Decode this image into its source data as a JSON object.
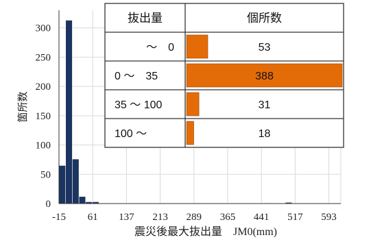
{
  "chart_data": {
    "type": "bar",
    "ylabel": "箇所数",
    "xlabel": "震災後最大抜出量　JM0(mm)",
    "ylim": [
      0,
      330
    ],
    "yticks": [
      0,
      50,
      100,
      150,
      200,
      250,
      300
    ],
    "xlim": [
      -15,
      620
    ],
    "xticks": [
      -15,
      61,
      137,
      213,
      289,
      365,
      441,
      517,
      593
    ],
    "grid": true,
    "bar_color": "#1b3460",
    "histogram": {
      "bin_starts": [
        -15,
        0,
        15,
        30,
        45,
        60,
        75,
        90,
        105,
        120,
        135,
        150,
        165,
        180,
        195,
        210,
        225,
        240,
        255,
        270,
        285,
        300,
        315,
        330,
        345,
        360,
        375,
        390,
        405,
        420,
        435,
        450,
        465,
        480,
        495,
        510,
        525,
        540,
        555,
        570,
        585,
        600
      ],
      "bin_width": 15,
      "counts": [
        65,
        313,
        76,
        12,
        3,
        3,
        0,
        0,
        0,
        0,
        0,
        0,
        0,
        0,
        0,
        1,
        0,
        0,
        0,
        0,
        1,
        0,
        0,
        0,
        0,
        0,
        0,
        0,
        0,
        0,
        0,
        1,
        0,
        0,
        2,
        0,
        0,
        0,
        0,
        0,
        0,
        0
      ]
    },
    "inset_table": {
      "headers": [
        "抜出量",
        "個所数"
      ],
      "rows": [
        {
          "label": "〜　0",
          "value": 53
        },
        {
          "label": "0 〜　35",
          "value": 388
        },
        {
          "label": "35 〜 100",
          "value": 31
        },
        {
          "label": "100 〜",
          "value": 18
        }
      ],
      "bar_color": "#e36c09",
      "max_value": 388
    }
  }
}
